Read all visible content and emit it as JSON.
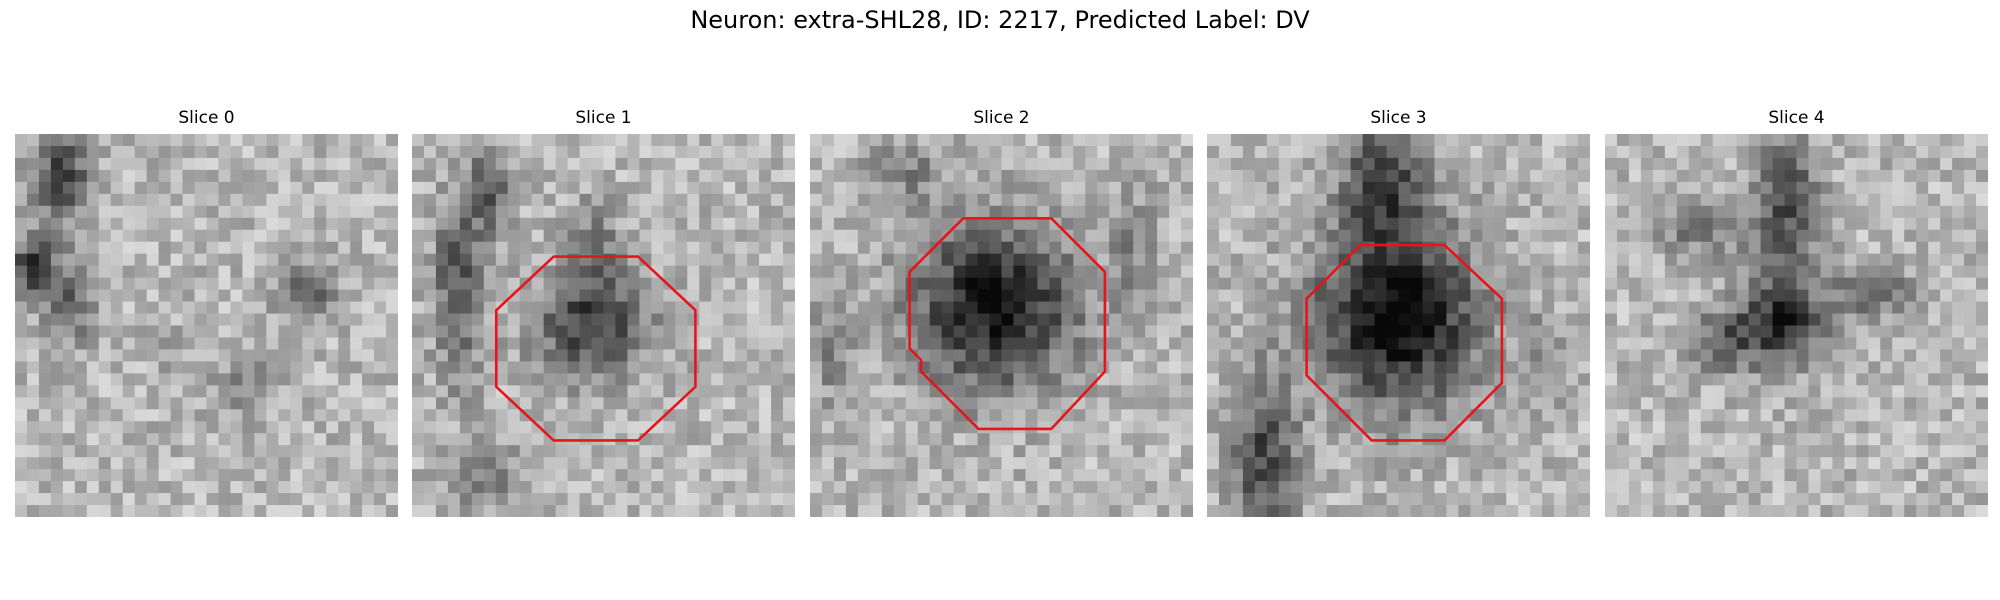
{
  "figure": {
    "title": "Neuron: extra-SHL28, ID: 2217, Predicted Label: DV",
    "contour_color": "#e8141c"
  },
  "slices": [
    {
      "title": "Slice 0",
      "has_contour": false
    },
    {
      "title": "Slice 1",
      "has_contour": true
    },
    {
      "title": "Slice 2",
      "has_contour": true
    },
    {
      "title": "Slice 3",
      "has_contour": true
    },
    {
      "title": "Slice 4",
      "has_contour": false
    }
  ]
}
